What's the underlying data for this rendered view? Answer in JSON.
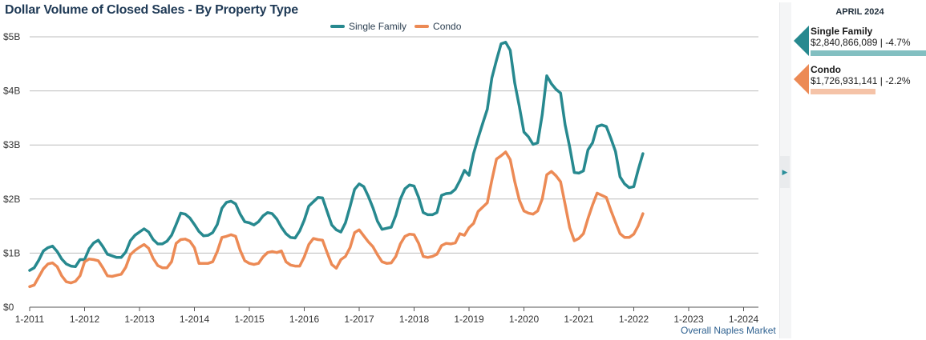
{
  "title": "Dollar Volume of Closed Sales - By Property Type",
  "market_label": "Overall Naples Market",
  "panel": {
    "period": "APRIL 2024",
    "items": [
      {
        "name": "Single Family",
        "value": "$2,840,866,089 | -4.7%",
        "color": "#27898f",
        "bar_color": "#82bfc1",
        "bar_fraction": 1.0
      },
      {
        "name": "Condo",
        "value": "$1,726,931,141 | -2.2%",
        "color": "#ec8a55",
        "bar_color": "#f5c3a8",
        "bar_fraction": 0.56
      }
    ]
  },
  "chart_data": {
    "type": "line",
    "title": "Dollar Volume of Closed Sales - By Property Type",
    "ylim": [
      0,
      5
    ],
    "yticks": [
      "$0",
      "$1B",
      "$2B",
      "$3B",
      "$4B",
      "$5B"
    ],
    "x_ticks": [
      "1-2011",
      "1-2012",
      "1-2013",
      "1-2014",
      "1-2015",
      "1-2016",
      "1-2017",
      "1-2018",
      "1-2019",
      "1-2020",
      "1-2021",
      "1-2022",
      "1-2023",
      "1-2024"
    ],
    "legend": "top-center",
    "grid": true,
    "series": [
      {
        "name": "Single Family",
        "color": "#27898f",
        "values": [
          0.68,
          0.73,
          0.87,
          1.04,
          1.1,
          1.13,
          1.03,
          0.89,
          0.8,
          0.76,
          0.75,
          0.88,
          0.88,
          1.08,
          1.19,
          1.24,
          1.12,
          0.98,
          0.95,
          0.92,
          0.92,
          1.02,
          1.23,
          1.33,
          1.39,
          1.45,
          1.39,
          1.25,
          1.17,
          1.17,
          1.22,
          1.33,
          1.53,
          1.74,
          1.72,
          1.65,
          1.53,
          1.4,
          1.32,
          1.33,
          1.38,
          1.53,
          1.83,
          1.94,
          1.96,
          1.91,
          1.72,
          1.58,
          1.56,
          1.52,
          1.58,
          1.69,
          1.75,
          1.73,
          1.63,
          1.48,
          1.36,
          1.29,
          1.28,
          1.41,
          1.61,
          1.87,
          1.95,
          2.03,
          2.02,
          1.77,
          1.52,
          1.43,
          1.39,
          1.56,
          1.86,
          2.18,
          2.28,
          2.23,
          2.05,
          1.84,
          1.59,
          1.44,
          1.46,
          1.48,
          1.7,
          2.0,
          2.19,
          2.26,
          2.24,
          2.03,
          1.75,
          1.71,
          1.71,
          1.75,
          2.07,
          2.1,
          2.11,
          2.18,
          2.34,
          2.53,
          2.44,
          2.84,
          3.13,
          3.4,
          3.66,
          4.24,
          4.57,
          4.87,
          4.9,
          4.75,
          4.14,
          3.71,
          3.24,
          3.15,
          3.01,
          3.04,
          3.56,
          4.28,
          4.13,
          4.03,
          3.96,
          3.37,
          2.96,
          2.49,
          2.48,
          2.52,
          2.91,
          3.04,
          3.34,
          3.37,
          3.34,
          3.12,
          2.88,
          2.41,
          2.28,
          2.21,
          2.23,
          2.55,
          2.84
        ]
      },
      {
        "name": "Condo",
        "color": "#ec8a55",
        "values": [
          0.38,
          0.41,
          0.56,
          0.71,
          0.8,
          0.82,
          0.75,
          0.58,
          0.47,
          0.45,
          0.48,
          0.58,
          0.84,
          0.89,
          0.88,
          0.86,
          0.73,
          0.58,
          0.57,
          0.59,
          0.61,
          0.74,
          0.97,
          1.05,
          1.11,
          1.16,
          1.09,
          0.9,
          0.77,
          0.73,
          0.73,
          0.84,
          1.18,
          1.25,
          1.26,
          1.22,
          1.1,
          0.81,
          0.81,
          0.81,
          0.84,
          1.03,
          1.29,
          1.31,
          1.34,
          1.31,
          1.05,
          0.86,
          0.81,
          0.79,
          0.81,
          0.93,
          1.01,
          1.03,
          1.01,
          1.04,
          0.84,
          0.78,
          0.76,
          0.76,
          0.93,
          1.16,
          1.27,
          1.25,
          1.24,
          1.01,
          0.79,
          0.72,
          0.88,
          0.94,
          1.1,
          1.38,
          1.43,
          1.32,
          1.21,
          1.12,
          0.97,
          0.84,
          0.81,
          0.82,
          0.94,
          1.17,
          1.31,
          1.35,
          1.34,
          1.18,
          0.94,
          0.92,
          0.94,
          0.98,
          1.14,
          1.18,
          1.17,
          1.19,
          1.36,
          1.33,
          1.47,
          1.55,
          1.77,
          1.85,
          1.93,
          2.35,
          2.74,
          2.8,
          2.87,
          2.73,
          2.32,
          1.98,
          1.78,
          1.74,
          1.72,
          1.78,
          2.0,
          2.45,
          2.51,
          2.43,
          2.32,
          1.9,
          1.47,
          1.23,
          1.27,
          1.36,
          1.64,
          1.89,
          2.11,
          2.07,
          2.03,
          1.79,
          1.57,
          1.36,
          1.29,
          1.29,
          1.35,
          1.51,
          1.73
        ]
      }
    ]
  }
}
